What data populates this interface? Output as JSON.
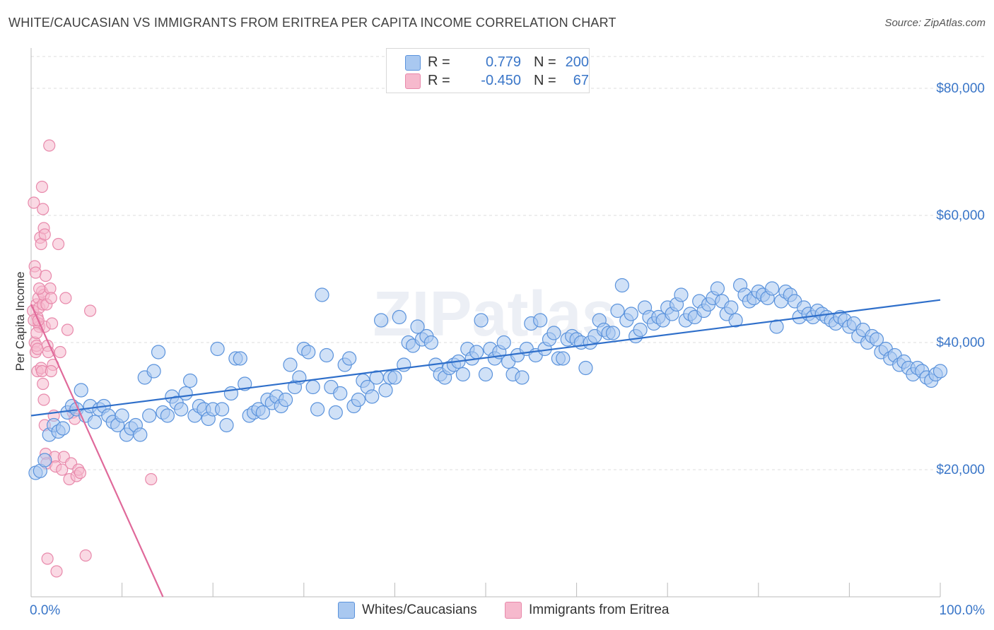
{
  "title": "WHITE/CAUCASIAN VS IMMIGRANTS FROM ERITREA PER CAPITA INCOME CORRELATION CHART",
  "source": "Source: ZipAtlas.com",
  "watermark": "ZIPatlas",
  "legend": {
    "rows": [
      {
        "r_label": "R =",
        "r_value": "0.779",
        "n_label": "N =",
        "n_value": "200"
      },
      {
        "r_label": "R =",
        "r_value": "-0.450",
        "n_label": "N =",
        "n_value": "67"
      }
    ]
  },
  "bottom_legend": [
    "Whites/Caucasians",
    "Immigrants from Eritrea"
  ],
  "colors": {
    "blue_fill": "#a9c8f0",
    "blue_stroke": "#5b93dc",
    "blue_line": "#2f6fca",
    "pink_fill": "#f6b9cd",
    "pink_stroke": "#e889ab",
    "pink_line": "#e0699a",
    "tick_text": "#3a76c8",
    "grid": "#dcdcdc"
  },
  "chart_data": {
    "type": "scatter",
    "title": "WHITE/CAUCASIAN VS IMMIGRANTS FROM ERITREA PER CAPITA INCOME CORRELATION CHART",
    "xlabel": "",
    "ylabel": "Per Capita Income",
    "xlim": [
      0,
      100
    ],
    "ylim": [
      0,
      85000
    ],
    "x_tick_labels": [
      "0.0%",
      "100.0%"
    ],
    "y_ticks": [
      20000,
      40000,
      60000,
      80000
    ],
    "y_tick_labels": [
      "$20,000",
      "$40,000",
      "$60,000",
      "$80,000"
    ],
    "grid": "horizontal dashed",
    "legend_position": "top-center",
    "series": [
      {
        "name": "Whites/Caucasians",
        "R": 0.779,
        "N": 200,
        "trend": {
          "x": [
            0,
            100
          ],
          "y": [
            28500,
            46700
          ]
        },
        "points": [
          [
            0.5,
            19500
          ],
          [
            1,
            19800
          ],
          [
            1.5,
            21500
          ],
          [
            2,
            25500
          ],
          [
            2.5,
            27000
          ],
          [
            3,
            26000
          ],
          [
            3.5,
            26500
          ],
          [
            4,
            29000
          ],
          [
            4.5,
            30000
          ],
          [
            5,
            29500
          ],
          [
            5.5,
            32500
          ],
          [
            6,
            28500
          ],
          [
            6.5,
            30000
          ],
          [
            7,
            27500
          ],
          [
            7.5,
            29500
          ],
          [
            8,
            30000
          ],
          [
            8.5,
            28500
          ],
          [
            9,
            27500
          ],
          [
            9.5,
            27000
          ],
          [
            10,
            28500
          ],
          [
            10.5,
            25500
          ],
          [
            11,
            26500
          ],
          [
            11.5,
            27000
          ],
          [
            12,
            25500
          ],
          [
            12.5,
            34500
          ],
          [
            13,
            28500
          ],
          [
            13.5,
            35500
          ],
          [
            14,
            38500
          ],
          [
            14.5,
            29000
          ],
          [
            15,
            28500
          ],
          [
            15.5,
            31500
          ],
          [
            16,
            30500
          ],
          [
            16.5,
            29500
          ],
          [
            17,
            32000
          ],
          [
            17.5,
            34000
          ],
          [
            18,
            28500
          ],
          [
            18.5,
            30000
          ],
          [
            19,
            29500
          ],
          [
            19.5,
            28000
          ],
          [
            20,
            29500
          ],
          [
            20.5,
            39000
          ],
          [
            21,
            29500
          ],
          [
            21.5,
            27000
          ],
          [
            22,
            32000
          ],
          [
            22.5,
            37500
          ],
          [
            23,
            37500
          ],
          [
            23.5,
            33500
          ],
          [
            24,
            28500
          ],
          [
            24.5,
            29000
          ],
          [
            25,
            29500
          ],
          [
            25.5,
            29000
          ],
          [
            26,
            31000
          ],
          [
            26.5,
            30500
          ],
          [
            27,
            31500
          ],
          [
            27.5,
            30000
          ],
          [
            28,
            31000
          ],
          [
            28.5,
            36500
          ],
          [
            29,
            33000
          ],
          [
            29.5,
            34500
          ],
          [
            30,
            39000
          ],
          [
            30.5,
            38500
          ],
          [
            31,
            33000
          ],
          [
            31.5,
            29500
          ],
          [
            32,
            47500
          ],
          [
            32.5,
            38000
          ],
          [
            33,
            33000
          ],
          [
            33.5,
            29000
          ],
          [
            34,
            32000
          ],
          [
            34.5,
            36500
          ],
          [
            35,
            37500
          ],
          [
            35.5,
            30000
          ],
          [
            36,
            31000
          ],
          [
            36.5,
            34000
          ],
          [
            37,
            33000
          ],
          [
            37.5,
            31500
          ],
          [
            38,
            34500
          ],
          [
            38.5,
            43500
          ],
          [
            39,
            32500
          ],
          [
            39.5,
            34500
          ],
          [
            40,
            34500
          ],
          [
            40.5,
            44000
          ],
          [
            41,
            36500
          ],
          [
            41.5,
            40000
          ],
          [
            42,
            39500
          ],
          [
            42.5,
            42500
          ],
          [
            43,
            40500
          ],
          [
            43.5,
            41000
          ],
          [
            44,
            40000
          ],
          [
            44.5,
            36500
          ],
          [
            45,
            35000
          ],
          [
            45.5,
            34500
          ],
          [
            46,
            36000
          ],
          [
            46.5,
            36500
          ],
          [
            47,
            37000
          ],
          [
            47.5,
            35000
          ],
          [
            48,
            39000
          ],
          [
            48.5,
            37500
          ],
          [
            49,
            38500
          ],
          [
            49.5,
            43500
          ],
          [
            50,
            35000
          ],
          [
            50.5,
            39000
          ],
          [
            51,
            37500
          ],
          [
            51.5,
            38500
          ],
          [
            52,
            40000
          ],
          [
            52.5,
            37000
          ],
          [
            53,
            35000
          ],
          [
            53.5,
            38000
          ],
          [
            54,
            34500
          ],
          [
            54.5,
            39000
          ],
          [
            55,
            43000
          ],
          [
            55.5,
            38000
          ],
          [
            56,
            43500
          ],
          [
            56.5,
            39000
          ],
          [
            57,
            40500
          ],
          [
            57.5,
            41500
          ],
          [
            58,
            37500
          ],
          [
            58.5,
            37500
          ],
          [
            59,
            40500
          ],
          [
            59.5,
            41000
          ],
          [
            60,
            40500
          ],
          [
            60.5,
            40000
          ],
          [
            61,
            36000
          ],
          [
            61.5,
            40000
          ],
          [
            62,
            41000
          ],
          [
            62.5,
            43500
          ],
          [
            63,
            42000
          ],
          [
            63.5,
            41500
          ],
          [
            64,
            41500
          ],
          [
            64.5,
            45000
          ],
          [
            65,
            49000
          ],
          [
            65.5,
            43500
          ],
          [
            66,
            44500
          ],
          [
            66.5,
            41000
          ],
          [
            67,
            42000
          ],
          [
            67.5,
            45500
          ],
          [
            68,
            44000
          ],
          [
            68.5,
            43000
          ],
          [
            69,
            44000
          ],
          [
            69.5,
            43500
          ],
          [
            70,
            45500
          ],
          [
            70.5,
            44500
          ],
          [
            71,
            46000
          ],
          [
            71.5,
            47500
          ],
          [
            72,
            43500
          ],
          [
            72.5,
            44500
          ],
          [
            73,
            44000
          ],
          [
            73.5,
            46500
          ],
          [
            74,
            45000
          ],
          [
            74.5,
            46000
          ],
          [
            75,
            47000
          ],
          [
            75.5,
            48500
          ],
          [
            76,
            46500
          ],
          [
            76.5,
            44500
          ],
          [
            77,
            45500
          ],
          [
            77.5,
            43500
          ],
          [
            78,
            49000
          ],
          [
            78.5,
            47500
          ],
          [
            79,
            46500
          ],
          [
            79.5,
            47000
          ],
          [
            80,
            48000
          ],
          [
            80.5,
            47500
          ],
          [
            81,
            47000
          ],
          [
            81.5,
            48500
          ],
          [
            82,
            42500
          ],
          [
            82.5,
            46500
          ],
          [
            83,
            48000
          ],
          [
            83.5,
            47500
          ],
          [
            84,
            46500
          ],
          [
            84.5,
            44000
          ],
          [
            85,
            45500
          ],
          [
            85.5,
            44500
          ],
          [
            86,
            44000
          ],
          [
            86.5,
            45000
          ],
          [
            87,
            44500
          ],
          [
            87.5,
            44000
          ],
          [
            88,
            43500
          ],
          [
            88.5,
            43000
          ],
          [
            89,
            44000
          ],
          [
            89.5,
            43500
          ],
          [
            90,
            42500
          ],
          [
            90.5,
            43000
          ],
          [
            91,
            41000
          ],
          [
            91.5,
            42000
          ],
          [
            92,
            40000
          ],
          [
            92.5,
            41000
          ],
          [
            93,
            40500
          ],
          [
            93.5,
            38500
          ],
          [
            94,
            39000
          ],
          [
            94.5,
            37500
          ],
          [
            95,
            38000
          ],
          [
            95.5,
            36500
          ],
          [
            96,
            37000
          ],
          [
            96.5,
            36000
          ],
          [
            97,
            35000
          ],
          [
            97.5,
            36000
          ],
          [
            98,
            35500
          ],
          [
            98.5,
            34500
          ],
          [
            99,
            34000
          ],
          [
            99.5,
            35000
          ],
          [
            100,
            35500
          ]
        ]
      },
      {
        "name": "Immigrants from Eritrea",
        "R": -0.45,
        "N": 67,
        "trend": {
          "x": [
            0,
            14.5
          ],
          "y": [
            46000,
            0
          ]
        },
        "points": [
          [
            0.3,
            62000
          ],
          [
            0.4,
            52000
          ],
          [
            0.5,
            51000
          ],
          [
            0.6,
            46000
          ],
          [
            0.7,
            44000
          ],
          [
            0.8,
            43000
          ],
          [
            0.9,
            42500
          ],
          [
            0.2,
            45000
          ],
          [
            0.3,
            43500
          ],
          [
            0.4,
            40000
          ],
          [
            0.5,
            38500
          ],
          [
            0.6,
            39500
          ],
          [
            0.7,
            35500
          ],
          [
            0.8,
            47000
          ],
          [
            0.9,
            45500
          ],
          [
            1,
            56500
          ],
          [
            1.1,
            55500
          ],
          [
            1.2,
            64500
          ],
          [
            1.3,
            61000
          ],
          [
            1.4,
            58000
          ],
          [
            1.5,
            57000
          ],
          [
            1.2,
            48000
          ],
          [
            1.3,
            46000
          ],
          [
            1.4,
            47500
          ],
          [
            1.5,
            42500
          ],
          [
            1.6,
            50500
          ],
          [
            1.7,
            46000
          ],
          [
            1.8,
            39500
          ],
          [
            1.9,
            38500
          ],
          [
            1.1,
            36000
          ],
          [
            1.2,
            35500
          ],
          [
            1.3,
            33500
          ],
          [
            1.4,
            31000
          ],
          [
            1.5,
            27000
          ],
          [
            1.6,
            22500
          ],
          [
            1.7,
            21000
          ],
          [
            1.8,
            6000
          ],
          [
            2,
            71000
          ],
          [
            2.1,
            48500
          ],
          [
            2.2,
            47000
          ],
          [
            2.3,
            43000
          ],
          [
            2.4,
            36500
          ],
          [
            2.5,
            28500
          ],
          [
            2.6,
            22000
          ],
          [
            2.7,
            20500
          ],
          [
            2.8,
            4000
          ],
          [
            3,
            55500
          ],
          [
            3.2,
            38500
          ],
          [
            3.4,
            20000
          ],
          [
            3.6,
            22000
          ],
          [
            3.8,
            47000
          ],
          [
            4,
            42000
          ],
          [
            4.2,
            18500
          ],
          [
            4.4,
            21000
          ],
          [
            4.6,
            29000
          ],
          [
            4.8,
            28000
          ],
          [
            5,
            19000
          ],
          [
            5.2,
            20000
          ],
          [
            5.4,
            19500
          ],
          [
            6,
            6500
          ],
          [
            6.5,
            45000
          ],
          [
            0.6,
            41500
          ],
          [
            0.7,
            39000
          ],
          [
            0.8,
            43500
          ],
          [
            0.9,
            48500
          ],
          [
            13.2,
            18500
          ],
          [
            2.2,
            35500
          ]
        ]
      }
    ]
  }
}
